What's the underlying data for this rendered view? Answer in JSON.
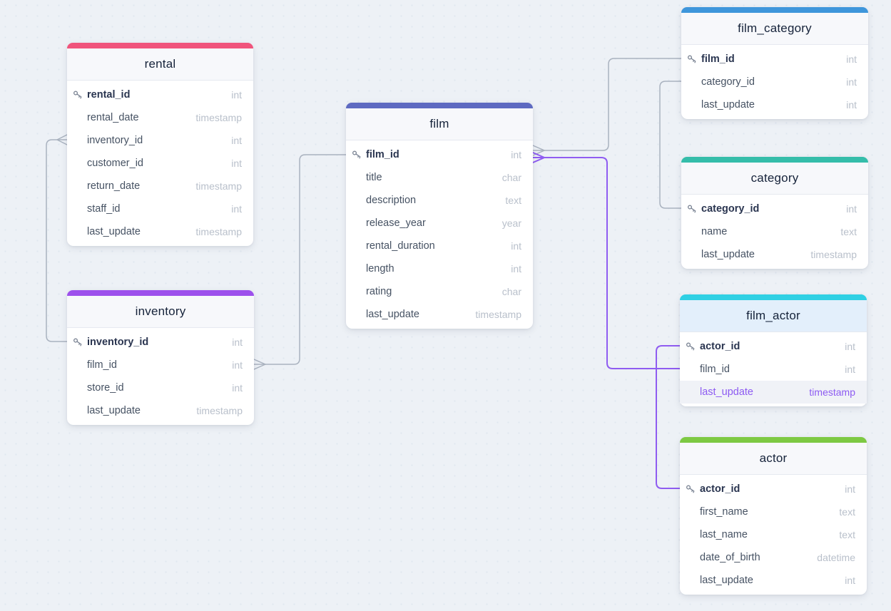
{
  "canvas": {
    "background": "#edf1f6"
  },
  "colors": {
    "edge_gray": "#a9b2bf",
    "edge_purple": "#8f5cf1",
    "highlight_text": "#8d5bf2",
    "field_text": "#465263",
    "type_text": "#b9c0cb",
    "title_text": "#16233a"
  },
  "tables": [
    {
      "id": "rental",
      "title": "rental",
      "accent": "#f0547c",
      "rows": [
        {
          "name": "rental_id",
          "type": "int",
          "pk": true
        },
        {
          "name": "rental_date",
          "type": "timestamp"
        },
        {
          "name": "inventory_id",
          "type": "int"
        },
        {
          "name": "customer_id",
          "type": "int"
        },
        {
          "name": "return_date",
          "type": "timestamp"
        },
        {
          "name": "staff_id",
          "type": "int"
        },
        {
          "name": "last_update",
          "type": "timestamp"
        }
      ]
    },
    {
      "id": "inventory",
      "title": "inventory",
      "accent": "#9d50ec",
      "rows": [
        {
          "name": "inventory_id",
          "type": "int",
          "pk": true
        },
        {
          "name": "film_id",
          "type": "int"
        },
        {
          "name": "store_id",
          "type": "int"
        },
        {
          "name": "last_update",
          "type": "timestamp"
        }
      ]
    },
    {
      "id": "film",
      "title": "film",
      "accent": "#5e6ac1",
      "rows": [
        {
          "name": "film_id",
          "type": "int",
          "pk": true
        },
        {
          "name": "title",
          "type": "char"
        },
        {
          "name": "description",
          "type": "text"
        },
        {
          "name": "release_year",
          "type": "year"
        },
        {
          "name": "rental_duration",
          "type": "int"
        },
        {
          "name": "length",
          "type": "int"
        },
        {
          "name": "rating",
          "type": "char"
        },
        {
          "name": "last_update",
          "type": "timestamp"
        }
      ]
    },
    {
      "id": "film_category",
      "title": "film_category",
      "accent": "#3e96db",
      "rows": [
        {
          "name": "film_id",
          "type": "int",
          "pk": true
        },
        {
          "name": "category_id",
          "type": "int"
        },
        {
          "name": "last_update",
          "type": "int"
        }
      ]
    },
    {
      "id": "category",
      "title": "category",
      "accent": "#35bdaa",
      "rows": [
        {
          "name": "category_id",
          "type": "int",
          "pk": true
        },
        {
          "name": "name",
          "type": "text"
        },
        {
          "name": "last_update",
          "type": "timestamp"
        }
      ]
    },
    {
      "id": "film_actor",
      "title": "film_actor",
      "accent": "#2fd0e4",
      "header_tint": "#e3effb",
      "rows": [
        {
          "name": "actor_id",
          "type": "int",
          "pk": true
        },
        {
          "name": "film_id",
          "type": "int"
        },
        {
          "name": "last_update",
          "type": "timestamp",
          "highlight": true
        }
      ]
    },
    {
      "id": "actor",
      "title": "actor",
      "accent": "#7dc943",
      "rows": [
        {
          "name": "actor_id",
          "type": "int",
          "pk": true
        },
        {
          "name": "first_name",
          "type": "text"
        },
        {
          "name": "last_name",
          "type": "text"
        },
        {
          "name": "date_of_birth",
          "type": "datetime"
        },
        {
          "name": "last_update",
          "type": "int"
        }
      ]
    }
  ],
  "relationships": [
    {
      "from": "inventory.inventory_id",
      "to": "rental.inventory_id",
      "color": "#a9b2bf",
      "many_end": "rental"
    },
    {
      "from": "film.film_id",
      "to": "inventory.film_id",
      "color": "#a9b2bf",
      "many_end": "inventory"
    },
    {
      "from": "film.film_id",
      "to": "film_category.film_id",
      "color": "#a9b2bf",
      "many_end": "film"
    },
    {
      "from": "film.film_id",
      "to": "film_actor.film_id",
      "color": "#8f5cf1",
      "many_end": "film"
    },
    {
      "from": "category.category_id",
      "to": "film_category.category_id",
      "color": "#a9b2bf",
      "many_end": null
    },
    {
      "from": "actor.actor_id",
      "to": "film_actor.actor_id",
      "color": "#8f5cf1",
      "many_end": null
    }
  ]
}
